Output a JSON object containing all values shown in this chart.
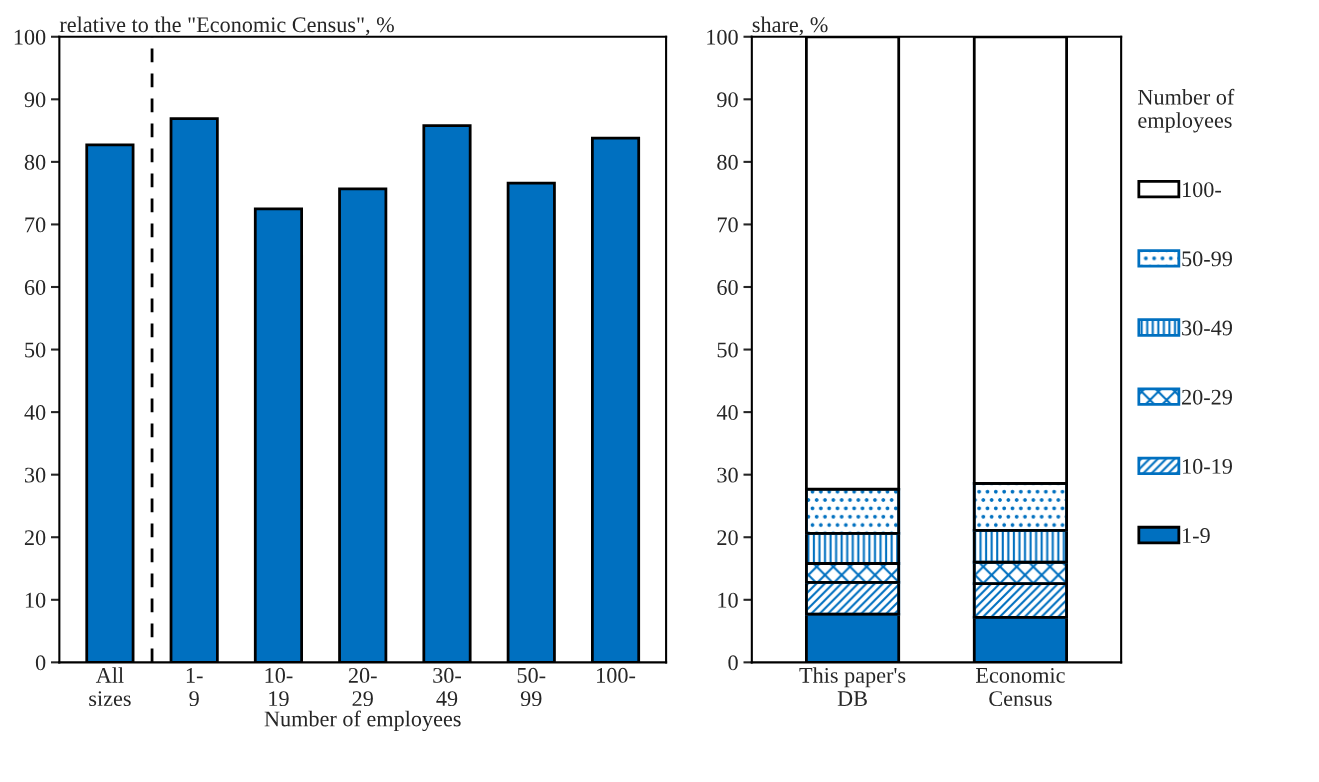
{
  "chart_data": [
    {
      "type": "bar",
      "ylabel": "relative to the \"Economic Census\", %",
      "xlabel": "Number of employees",
      "categories": [
        "All\nsizes",
        "1-\n9",
        "10-\n19",
        "20-\n29",
        "30-\n49",
        "50-\n99",
        "100-"
      ],
      "values": [
        82.7,
        86.9,
        72.5,
        75.7,
        85.8,
        76.6,
        83.8
      ],
      "color": "#0070c0",
      "ylim": [
        0,
        100
      ],
      "yticks": [
        0,
        10,
        20,
        30,
        40,
        50,
        60,
        70,
        80,
        90,
        100
      ],
      "grid": false,
      "legend": false
    },
    {
      "type": "bar",
      "stacked": true,
      "ylabel": "share, %",
      "legend_title": "Number of\nemployees",
      "categories": [
        "This paper's\nDB",
        "Economic\nCensus"
      ],
      "series": [
        {
          "name": "1-9",
          "color": "#0070c0",
          "values": [
            7.7,
            7.2
          ]
        },
        {
          "name": "10-19",
          "color": "#0070c0",
          "values": [
            5.1,
            5.4
          ]
        },
        {
          "name": "20-29",
          "color": "#0070c0",
          "values": [
            3.0,
            3.4
          ]
        },
        {
          "name": "30-49",
          "color": "#0070c0",
          "values": [
            4.8,
            5.1
          ]
        },
        {
          "name": "50-99",
          "color": "#0070c0",
          "values": [
            7.1,
            7.5
          ]
        },
        {
          "name": "100-",
          "color": "#ffffff",
          "values": [
            72.3,
            71.4
          ]
        }
      ],
      "ylim": [
        0,
        100
      ],
      "yticks": [
        0,
        10,
        20,
        30,
        40,
        50,
        60,
        70,
        80,
        90,
        100
      ],
      "grid": false,
      "legend": "right"
    }
  ]
}
